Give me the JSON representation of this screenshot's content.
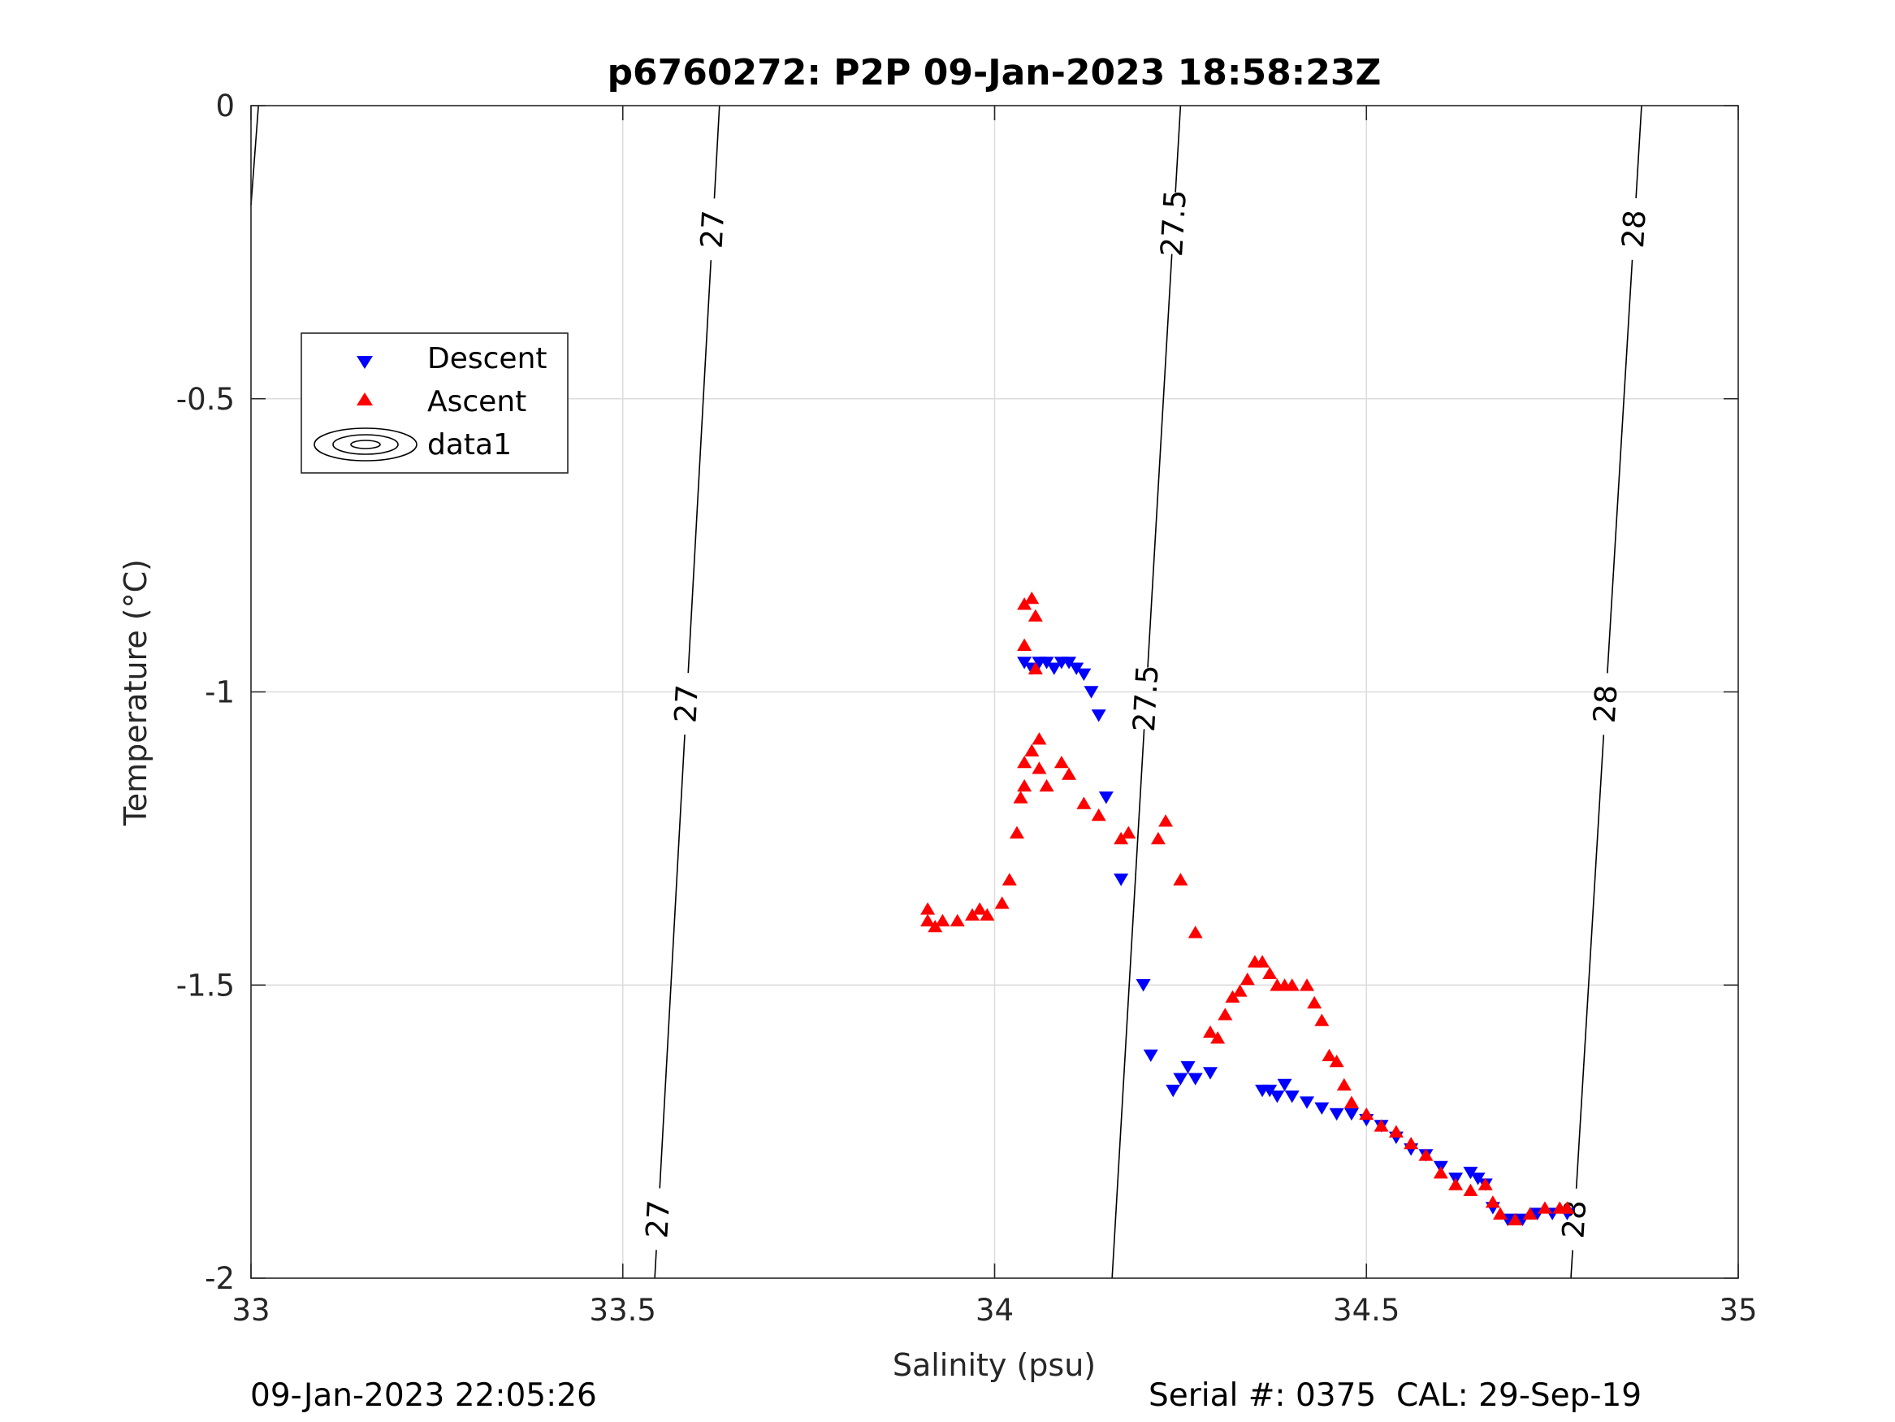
{
  "chart_data": {
    "type": "scatter",
    "title": "p6760272: P2P 09-Jan-2023 18:58:23Z",
    "xlabel": "Salinity (psu)",
    "ylabel": "Temperature (°C)",
    "xlim": [
      33,
      35
    ],
    "ylim": [
      -2,
      0
    ],
    "xticks": [
      33,
      33.5,
      34,
      34.5,
      35
    ],
    "xtick_labels": [
      "33",
      "33.5",
      "34",
      "34.5",
      "35"
    ],
    "yticks": [
      0,
      -0.5,
      -1,
      -1.5,
      -2
    ],
    "ytick_labels": [
      "0",
      "-0.5",
      "-1",
      "-1.5",
      "-2"
    ],
    "grid": true,
    "legend": {
      "placement": "upper-left",
      "entries": [
        "Descent",
        "Ascent",
        "data1"
      ]
    },
    "contour_labels": [
      "27",
      "27.5",
      "28"
    ],
    "contours": [
      {
        "level": "27",
        "line": [
          [
            33.0,
            -0.17
          ],
          [
            33.01,
            0
          ]
        ],
        "labels": []
      },
      {
        "level": "27",
        "line": [
          [
            33.543,
            -2.0
          ],
          [
            33.63,
            0.0
          ]
        ],
        "labels": [
          [
            33.606,
            -0.21
          ],
          [
            33.582,
            -1.02
          ],
          [
            33.556,
            -1.9
          ]
        ]
      },
      {
        "level": "27.5",
        "line": [
          [
            34.158,
            -2.0
          ],
          [
            34.25,
            0.0
          ]
        ],
        "labels": [
          [
            34.235,
            -0.2
          ],
          [
            34.19,
            -1.01
          ]
        ]
      },
      {
        "level": "28",
        "line": [
          [
            34.775,
            -2.0
          ],
          [
            34.87,
            0.0
          ]
        ],
        "labels": [
          [
            34.853,
            -0.21
          ],
          [
            34.813,
            -1.02
          ],
          [
            34.783,
            -1.9
          ]
        ]
      }
    ],
    "series": [
      {
        "name": "Descent",
        "marker": "triangle-down",
        "color": "#0000ff",
        "points": [
          [
            34.04,
            -0.95
          ],
          [
            34.05,
            -0.96
          ],
          [
            34.06,
            -0.95
          ],
          [
            34.07,
            -0.95
          ],
          [
            34.08,
            -0.96
          ],
          [
            34.09,
            -0.95
          ],
          [
            34.1,
            -0.95
          ],
          [
            34.11,
            -0.96
          ],
          [
            34.12,
            -0.97
          ],
          [
            34.13,
            -1.0
          ],
          [
            34.14,
            -1.04
          ],
          [
            34.15,
            -1.18
          ],
          [
            34.17,
            -1.32
          ],
          [
            34.2,
            -1.5
          ],
          [
            34.21,
            -1.62
          ],
          [
            34.24,
            -1.68
          ],
          [
            34.25,
            -1.66
          ],
          [
            34.26,
            -1.64
          ],
          [
            34.27,
            -1.66
          ],
          [
            34.29,
            -1.65
          ],
          [
            34.36,
            -1.68
          ],
          [
            34.37,
            -1.68
          ],
          [
            34.38,
            -1.69
          ],
          [
            34.39,
            -1.67
          ],
          [
            34.4,
            -1.69
          ],
          [
            34.42,
            -1.7
          ],
          [
            34.44,
            -1.71
          ],
          [
            34.46,
            -1.72
          ],
          [
            34.48,
            -1.72
          ],
          [
            34.5,
            -1.73
          ],
          [
            34.52,
            -1.74
          ],
          [
            34.54,
            -1.76
          ],
          [
            34.56,
            -1.78
          ],
          [
            34.58,
            -1.79
          ],
          [
            34.6,
            -1.81
          ],
          [
            34.62,
            -1.83
          ],
          [
            34.64,
            -1.82
          ],
          [
            34.65,
            -1.83
          ],
          [
            34.66,
            -1.84
          ],
          [
            34.67,
            -1.88
          ],
          [
            34.69,
            -1.9
          ],
          [
            34.71,
            -1.9
          ],
          [
            34.73,
            -1.89
          ],
          [
            34.75,
            -1.89
          ],
          [
            34.77,
            -1.89
          ]
        ]
      },
      {
        "name": "Ascent",
        "marker": "triangle-up",
        "color": "#ff0000",
        "points": [
          [
            33.91,
            -1.37
          ],
          [
            33.91,
            -1.39
          ],
          [
            33.92,
            -1.4
          ],
          [
            33.93,
            -1.39
          ],
          [
            33.95,
            -1.39
          ],
          [
            33.97,
            -1.38
          ],
          [
            33.98,
            -1.37
          ],
          [
            33.99,
            -1.38
          ],
          [
            34.01,
            -1.36
          ],
          [
            34.02,
            -1.32
          ],
          [
            34.03,
            -1.24
          ],
          [
            34.035,
            -1.18
          ],
          [
            34.04,
            -1.16
          ],
          [
            34.04,
            -1.12
          ],
          [
            34.05,
            -1.1
          ],
          [
            34.06,
            -1.08
          ],
          [
            34.06,
            -1.13
          ],
          [
            34.07,
            -1.16
          ],
          [
            34.04,
            -0.85
          ],
          [
            34.05,
            -0.84
          ],
          [
            34.055,
            -0.87
          ],
          [
            34.04,
            -0.92
          ],
          [
            34.055,
            -0.96
          ],
          [
            34.09,
            -1.12
          ],
          [
            34.1,
            -1.14
          ],
          [
            34.12,
            -1.19
          ],
          [
            34.14,
            -1.21
          ],
          [
            34.17,
            -1.25
          ],
          [
            34.18,
            -1.24
          ],
          [
            34.22,
            -1.25
          ],
          [
            34.23,
            -1.22
          ],
          [
            34.25,
            -1.32
          ],
          [
            34.27,
            -1.41
          ],
          [
            34.29,
            -1.58
          ],
          [
            34.3,
            -1.59
          ],
          [
            34.31,
            -1.55
          ],
          [
            34.32,
            -1.52
          ],
          [
            34.33,
            -1.51
          ],
          [
            34.34,
            -1.49
          ],
          [
            34.35,
            -1.46
          ],
          [
            34.36,
            -1.46
          ],
          [
            34.37,
            -1.48
          ],
          [
            34.38,
            -1.5
          ],
          [
            34.39,
            -1.5
          ],
          [
            34.4,
            -1.5
          ],
          [
            34.42,
            -1.5
          ],
          [
            34.43,
            -1.53
          ],
          [
            34.44,
            -1.56
          ],
          [
            34.45,
            -1.62
          ],
          [
            34.46,
            -1.63
          ],
          [
            34.47,
            -1.67
          ],
          [
            34.48,
            -1.7
          ],
          [
            34.5,
            -1.72
          ],
          [
            34.52,
            -1.74
          ],
          [
            34.54,
            -1.75
          ],
          [
            34.56,
            -1.77
          ],
          [
            34.58,
            -1.79
          ],
          [
            34.6,
            -1.82
          ],
          [
            34.62,
            -1.84
          ],
          [
            34.64,
            -1.85
          ],
          [
            34.66,
            -1.84
          ],
          [
            34.67,
            -1.87
          ],
          [
            34.68,
            -1.89
          ],
          [
            34.7,
            -1.9
          ],
          [
            34.72,
            -1.89
          ],
          [
            34.74,
            -1.88
          ],
          [
            34.76,
            -1.88
          ],
          [
            34.77,
            -1.88
          ]
        ]
      }
    ]
  },
  "footer": {
    "left": "09-Jan-2023 22:05:26",
    "right": "Serial #: 0375  CAL: 29-Sep-19"
  }
}
